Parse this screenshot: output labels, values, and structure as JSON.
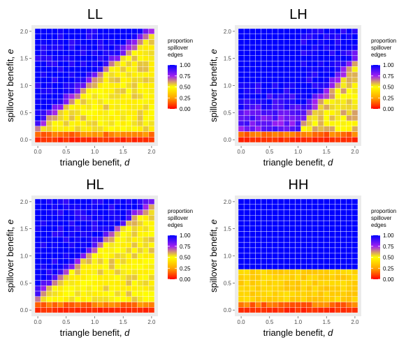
{
  "chart_data": [
    {
      "type": "heatmap",
      "title": "LL",
      "xlabel": "triangle benefit, ",
      "xlabel_var": "d",
      "ylabel": "spillover benefit, ",
      "ylabel_var": "e",
      "x_ticks": [
        "0.0",
        "0.5",
        "1.0",
        "1.5",
        "2.0"
      ],
      "y_ticks": [
        "0.0",
        "0.5",
        "1.0",
        "1.5",
        "2.0"
      ],
      "xlim": [
        0,
        2
      ],
      "ylim": [
        0,
        2
      ],
      "grid_step": 0.1,
      "legend": {
        "title": [
          "proportion",
          "spillover",
          "edges"
        ],
        "ticks": [
          "1.00",
          "0.75",
          "0.50",
          "0.25",
          "0.00"
        ],
        "range": [
          0,
          1
        ]
      },
      "regime": "diagonal",
      "fill": {
        "low_band": 0.12,
        "high": 1.0,
        "boundary_intercept": 0.25,
        "boundary_slope": 0.9,
        "transition_width": 0.45,
        "mid_level": 0.6
      }
    },
    {
      "type": "heatmap",
      "title": "LH",
      "xlabel": "triangle benefit, ",
      "xlabel_var": "d",
      "ylabel": "spillover benefit, ",
      "ylabel_var": "e",
      "x_ticks": [
        "0.0",
        "0.5",
        "1.0",
        "1.5",
        "2.0"
      ],
      "y_ticks": [
        "0.0",
        "0.5",
        "1.0",
        "1.5",
        "2.0"
      ],
      "xlim": [
        0,
        2
      ],
      "ylim": [
        0,
        2
      ],
      "grid_step": 0.1,
      "legend": {
        "title": [
          "proportion",
          "spillover",
          "edges"
        ],
        "ticks": [
          "1.00",
          "0.75",
          "0.50",
          "0.25",
          "0.00"
        ],
        "range": [
          0,
          1
        ]
      },
      "regime": "step",
      "fill": {
        "low_band": 0.1,
        "high": 1.0,
        "step_x": 1.1,
        "upper_block_y": 1.0,
        "transition_width": 0.6,
        "mid_level": 0.62
      }
    },
    {
      "type": "heatmap",
      "title": "HL",
      "xlabel": "triangle benefit, ",
      "xlabel_var": "d",
      "ylabel": "spillover benefit, ",
      "ylabel_var": "e",
      "x_ticks": [
        "0.0",
        "0.5",
        "1.0",
        "1.5",
        "2.0"
      ],
      "y_ticks": [
        "0.0",
        "0.5",
        "1.0",
        "1.5",
        "2.0"
      ],
      "xlim": [
        0,
        2
      ],
      "ylim": [
        0,
        2
      ],
      "grid_step": 0.1,
      "legend": {
        "title": [
          "proportion",
          "spillover",
          "edges"
        ],
        "ticks": [
          "1.00",
          "0.75",
          "0.50",
          "0.25",
          "0.00"
        ],
        "range": [
          0,
          1
        ]
      },
      "regime": "diagonal",
      "fill": {
        "low_band": 0.12,
        "high": 1.0,
        "boundary_intercept": 0.3,
        "boundary_slope": 0.85,
        "transition_width": 0.4,
        "mid_level": 0.6
      }
    },
    {
      "type": "heatmap",
      "title": "HH",
      "xlabel": "triangle benefit, ",
      "xlabel_var": "d",
      "ylabel": "spillover benefit, ",
      "ylabel_var": "e",
      "x_ticks": [
        "0.0",
        "0.5",
        "1.0",
        "1.5",
        "2.0"
      ],
      "y_ticks": [
        "0.0",
        "0.5",
        "1.0",
        "1.5",
        "2.0"
      ],
      "xlim": [
        0,
        2
      ],
      "ylim": [
        0,
        2
      ],
      "grid_step": 0.1,
      "legend": {
        "title": [
          "proportion",
          "spillover",
          "edges"
        ],
        "ticks": [
          "1.00",
          "0.75",
          "0.50",
          "0.25",
          "0.00"
        ],
        "range": [
          0,
          1
        ]
      },
      "regime": "flat",
      "fill": {
        "low_band": 0.1,
        "high": 1.0,
        "threshold_y": 0.8,
        "mid_level": 0.37
      }
    }
  ],
  "colors": {
    "panel_bg": "#ebebeb",
    "gradient": [
      "#ff0000",
      "#ffa500",
      "#ffff00",
      "#a020f0",
      "#0000ff"
    ],
    "tile_border": "#ffffff"
  }
}
